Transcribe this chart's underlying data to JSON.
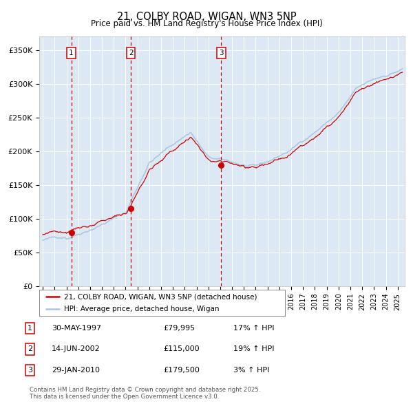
{
  "title1": "21, COLBY ROAD, WIGAN, WN3 5NP",
  "title2": "Price paid vs. HM Land Registry's House Price Index (HPI)",
  "bg_color": "#dce9f5",
  "red_line_color": "#cc0000",
  "blue_line_color": "#aac4e0",
  "sale_marker_color": "#cc0000",
  "dashed_line_color": "#cc0000",
  "ylabel_ticks": [
    "£0",
    "£50K",
    "£100K",
    "£150K",
    "£200K",
    "£250K",
    "£300K",
    "£350K"
  ],
  "ytick_vals": [
    0,
    50000,
    100000,
    150000,
    200000,
    250000,
    300000,
    350000
  ],
  "ylim": [
    0,
    370000
  ],
  "xlim_start": 1994.7,
  "xlim_end": 2025.6,
  "sales": [
    {
      "num": 1,
      "date_num": 1997.41,
      "price": 79995,
      "label": "30-MAY-1997",
      "price_str": "£79,995",
      "hpi_str": "17% ↑ HPI"
    },
    {
      "num": 2,
      "date_num": 2002.45,
      "price": 115000,
      "label": "14-JUN-2002",
      "price_str": "£115,000",
      "hpi_str": "19% ↑ HPI"
    },
    {
      "num": 3,
      "date_num": 2010.08,
      "price": 179500,
      "label": "29-JAN-2010",
      "price_str": "£179,500",
      "hpi_str": "3% ↑ HPI"
    }
  ],
  "legend_red": "21, COLBY ROAD, WIGAN, WN3 5NP (detached house)",
  "legend_blue": "HPI: Average price, detached house, Wigan",
  "footer1": "Contains HM Land Registry data © Crown copyright and database right 2025.",
  "footer2": "This data is licensed under the Open Government Licence v3.0."
}
